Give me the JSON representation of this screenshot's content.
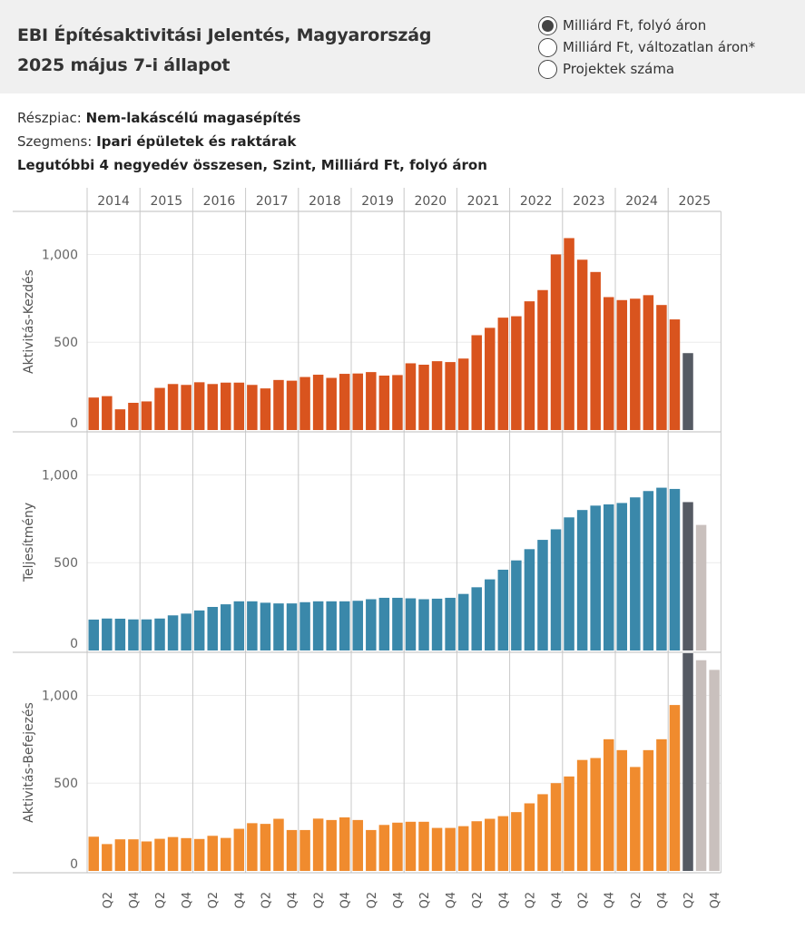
{
  "header": {
    "title_line1": "EBI Építésaktivitási Jelentés, Magyarország",
    "title_line2": "2025 május 7-i állapot"
  },
  "measure_options": [
    {
      "label": "Milliárd Ft, folyó áron",
      "selected": true
    },
    {
      "label": "Milliárd Ft, változatlan áron*",
      "selected": false
    },
    {
      "label": "Projektek száma",
      "selected": false
    }
  ],
  "filters": {
    "submarket_label": "Részpiac:",
    "submarket_value": "Nem-lakáscélú magasépítés",
    "segment_label": "Szegmens:",
    "segment_value": "Ipari épületek és raktárak",
    "subtitle": "Legutóbbi 4 negyedév összesen, Szint, Milliárd Ft, folyó áron"
  },
  "colors": {
    "start": "#d9541e",
    "performance": "#3a88aa",
    "completion": "#f08b2e",
    "actual_2025": "#555a63",
    "forecast": "#c9c0bd",
    "grid": "#ececec",
    "divider": "#c8c8c8"
  },
  "chart_data": {
    "type": "bar",
    "years": [
      "2014",
      "2015",
      "2016",
      "2017",
      "2018",
      "2019",
      "2020",
      "2021",
      "2022",
      "2023",
      "2024",
      "2025"
    ],
    "quarter_tick_labels": [
      "Q2",
      "Q4"
    ],
    "y_ticks": [
      0,
      500,
      1000
    ],
    "y_tick_labels": [
      "0",
      "500",
      "1,000"
    ],
    "ylim": [
      0,
      1240
    ],
    "panels": [
      {
        "name": "Aktivitás-Kezdés",
        "series": [
          {
            "values": [
              185,
              193,
              118,
              155,
              163,
              240,
              262,
              257,
              272,
              262,
              270,
              270,
              257,
              237,
              285,
              281,
              302,
              315,
              297,
              320,
              322,
              330,
              310,
              313,
              380,
              372,
              392,
              387,
              407,
              540,
              582,
              640,
              648,
              733,
              797,
              1000,
              1093,
              970,
              900,
              757,
              740,
              748,
              768,
              712,
              630
            ],
            "style": "actual"
          },
          {
            "values": [
              438
            ],
            "style": "current"
          }
        ]
      },
      {
        "name": "Teljesítmény",
        "series": [
          {
            "values": [
              176,
              182,
              181,
              177,
              177,
              182,
              200,
              210,
              228,
              248,
              263,
              280,
              280,
              272,
              268,
              268,
              275,
              280,
              280,
              280,
              283,
              292,
              300,
              300,
              297,
              292,
              295,
              300,
              322,
              360,
              405,
              460,
              513,
              577,
              630,
              690,
              758,
              800,
              825,
              832,
              840,
              872,
              908,
              927,
              920
            ],
            "style": "actual"
          },
          {
            "values": [
              845
            ],
            "style": "current"
          },
          {
            "values": [
              715
            ],
            "style": "forecast"
          }
        ]
      },
      {
        "name": "Aktivitás-Befejezés",
        "series": [
          {
            "values": [
              195,
              153,
              180,
              180,
              168,
              183,
              193,
              187,
              182,
              200,
              188,
              240,
              272,
              268,
              297,
              233,
              233,
              298,
              290,
              305,
              290,
              233,
              262,
              275,
              280,
              280,
              245,
              245,
              255,
              283,
              297,
              312,
              335,
              385,
              437,
              500,
              538,
              632,
              643,
              750,
              688,
              592,
              688,
              750,
              945
            ],
            "style": "actual"
          },
          {
            "values": [
              1240
            ],
            "style": "current"
          },
          {
            "values": [
              1200,
              1145
            ],
            "style": "forecast"
          }
        ]
      }
    ]
  }
}
